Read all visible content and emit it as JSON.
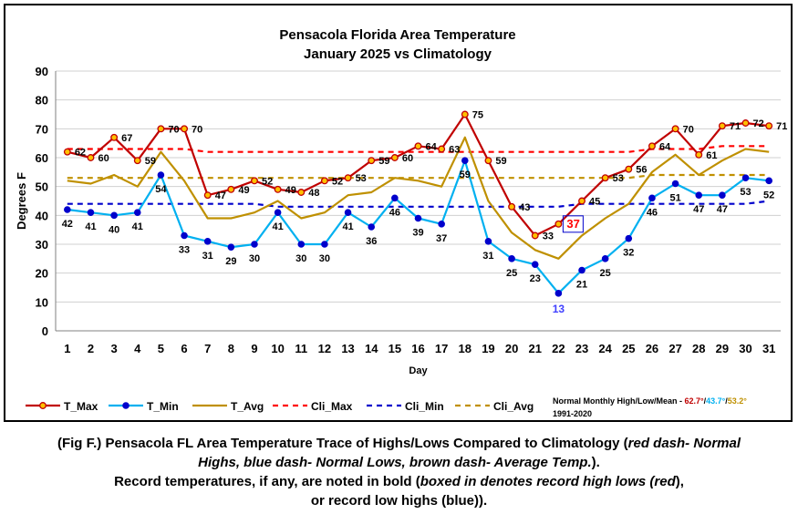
{
  "colors": {
    "t_max": "#c00000",
    "t_min": "#00b0f0",
    "t_avg": "#bf9000",
    "cli_max": "#ff0000",
    "cli_min": "#0000cc",
    "cli_avg": "#c09000",
    "marker_max_fill": "#ffc000",
    "marker_min_fill": "#0000cc",
    "record_high_low": "#ff0000",
    "record_low_high": "#4040ff"
  },
  "chart_data": {
    "type": "line",
    "title": "Pensacola Florida Area Temperature",
    "subtitle": "January 2025 vs Climatology",
    "xlabel": "Day",
    "ylabel": "Degrees F",
    "ylim": [
      0,
      90
    ],
    "ytick_step": 10,
    "grid": true,
    "legend_position": "bottom",
    "x": [
      1,
      2,
      3,
      4,
      5,
      6,
      7,
      8,
      9,
      10,
      11,
      12,
      13,
      14,
      15,
      16,
      17,
      18,
      19,
      20,
      21,
      22,
      23,
      24,
      25,
      26,
      27,
      28,
      29,
      30,
      31
    ],
    "series": [
      {
        "name": "T_Max",
        "style": "solid-marker-open",
        "values": [
          62,
          60,
          67,
          59,
          70,
          70,
          47,
          49,
          52,
          49,
          48,
          52,
          53,
          59,
          60,
          64,
          63,
          75,
          59,
          43,
          33,
          37,
          45,
          53,
          56,
          64,
          70,
          61,
          71,
          72,
          71
        ]
      },
      {
        "name": "T_Min",
        "style": "solid-marker-filled",
        "values": [
          42,
          41,
          40,
          41,
          54,
          33,
          31,
          29,
          30,
          41,
          30,
          30,
          41,
          36,
          46,
          39,
          37,
          59,
          31,
          25,
          23,
          13,
          21,
          25,
          32,
          46,
          51,
          47,
          47,
          53,
          52
        ]
      },
      {
        "name": "T_Avg",
        "style": "solid",
        "values": [
          52,
          51,
          54,
          50,
          62,
          52,
          39,
          39,
          41,
          45,
          39,
          41,
          47,
          48,
          53,
          52,
          50,
          67,
          45,
          34,
          28,
          25,
          33,
          39,
          44,
          55,
          61,
          54,
          59,
          63,
          62
        ]
      },
      {
        "name": "Cli_Max",
        "style": "dashed",
        "values": [
          63,
          63,
          63,
          63,
          63,
          63,
          62,
          62,
          62,
          62,
          62,
          62,
          62,
          62,
          62,
          62,
          62,
          62,
          62,
          62,
          62,
          62,
          62,
          62,
          62,
          63,
          63,
          63,
          64,
          64,
          64
        ]
      },
      {
        "name": "Cli_Min",
        "style": "dashed",
        "values": [
          44,
          44,
          44,
          44,
          44,
          44,
          44,
          44,
          44,
          43,
          43,
          43,
          43,
          43,
          43,
          43,
          43,
          43,
          43,
          43,
          43,
          43,
          44,
          44,
          44,
          44,
          44,
          44,
          44,
          44,
          45
        ]
      },
      {
        "name": "Cli_Avg",
        "style": "dashed",
        "values": [
          53,
          53,
          53,
          53,
          53,
          53,
          53,
          53,
          53,
          53,
          53,
          53,
          53,
          53,
          53,
          53,
          53,
          53,
          53,
          53,
          53,
          53,
          53,
          53,
          53,
          54,
          54,
          54,
          54,
          54,
          54
        ]
      }
    ],
    "records": [
      {
        "day": 22,
        "value": 37,
        "series": "T_Max",
        "type": "record high low",
        "boxed": true
      },
      {
        "day": 22,
        "value": 13,
        "series": "T_Min",
        "type": "record low high",
        "boxed": false
      }
    ],
    "normals_note": {
      "prefix": "Normal Monthly High/Low/Mean - ",
      "high": "62.7°",
      "low": "43.7°",
      "mean": "53.2°",
      "sep": "/",
      "period": "1991-2020"
    }
  },
  "caption": {
    "line1_bold": "(Fig F.) Pensacola FL Area Temperature Trace of Highs/Lows Compared to Climatology (",
    "line1_italic": "red dash- Normal",
    "line2_italic": "Highs, blue dash- Normal Lows, brown dash- Average Temp.",
    "line2_end": ").",
    "line3_bold": "Record temperatures, if any, are noted in bold (",
    "line3_italic": "boxed in denotes record high lows (red",
    "line3_end": "),",
    "line4": "or record low highs (blue))."
  }
}
